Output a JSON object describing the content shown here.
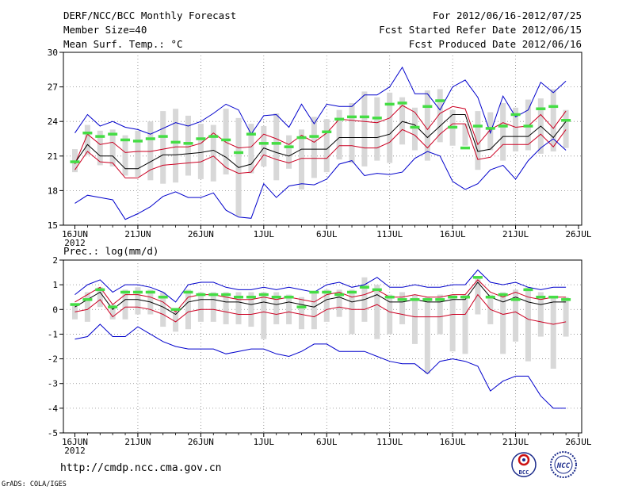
{
  "header": {
    "title": "DERF/NCC/BCC Monthly Forecast",
    "member_size": "Member Size=40",
    "variable": "Mean Surf. Temp.: °C",
    "period": "For 2012/06/16-2012/07/25",
    "start_date": "Fcst Started Refer Date 2012/06/15",
    "produced": "Fcst Produced Date 2012/06/16"
  },
  "footer": {
    "url": "http://cmdp.ncc.cma.gov.cn",
    "grads": "GrADS: COLA/IGES",
    "logo_bcc": "BCC",
    "logo_ncc": "NCC"
  },
  "colors": {
    "envelope": "#0000cc",
    "spread": "#cc0022",
    "mean": "#000000",
    "median": "#44dd44",
    "box": "#d8d8d8",
    "grid": "#888888"
  },
  "chart_data": [
    {
      "type": "line",
      "title": "Mean Surf. Temp.: °C",
      "x_tick_labels": [
        "16JUN",
        "21JUN",
        "26JUN",
        "1JUL",
        "6JUL",
        "11JUL",
        "16JUL",
        "21JUL",
        "26JUL"
      ],
      "x_tick_days": [
        0,
        5,
        10,
        15,
        20,
        25,
        30,
        35,
        40
      ],
      "x_year_label": "2012",
      "ylim": [
        15,
        30
      ],
      "y_ticks": [
        15,
        18,
        21,
        24,
        27,
        30
      ],
      "days": [
        0,
        1,
        2,
        3,
        4,
        5,
        6,
        7,
        8,
        9,
        10,
        11,
        12,
        13,
        14,
        15,
        16,
        17,
        18,
        19,
        20,
        21,
        22,
        23,
        24,
        25,
        26,
        27,
        28,
        29,
        30,
        31,
        32,
        33,
        34,
        35,
        36,
        37,
        38,
        39
      ],
      "series": [
        {
          "name": "ensemble max",
          "color_key": "envelope",
          "values": [
            23.0,
            24.6,
            23.6,
            24.0,
            23.5,
            23.3,
            22.9,
            23.4,
            23.9,
            23.6,
            24.0,
            24.7,
            25.5,
            25.0,
            22.9,
            24.5,
            24.6,
            23.5,
            25.5,
            23.8,
            25.5,
            25.3,
            25.3,
            26.3,
            26.3,
            27.0,
            28.7,
            26.4,
            26.4,
            25.0,
            27.0,
            27.6,
            26.1,
            23.0,
            26.2,
            24.4,
            25.0,
            27.4,
            26.5,
            27.5
          ]
        },
        {
          "name": "upper spread",
          "color_key": "spread",
          "values": [
            20.3,
            22.9,
            22.0,
            22.2,
            21.3,
            21.4,
            21.4,
            21.6,
            21.8,
            21.8,
            22.1,
            23.0,
            22.2,
            21.7,
            21.8,
            22.9,
            22.5,
            22.0,
            22.8,
            22.2,
            23.0,
            24.2,
            24.1,
            24.0,
            23.9,
            24.3,
            25.4,
            24.8,
            23.3,
            24.7,
            25.3,
            25.1,
            22.0,
            23.3,
            23.9,
            23.5,
            23.6,
            24.6,
            23.4,
            24.9
          ]
        },
        {
          "name": "ensemble mean",
          "color_key": "mean",
          "values": [
            20.4,
            22.0,
            21.0,
            21.0,
            19.9,
            19.9,
            20.5,
            21.1,
            21.1,
            21.2,
            21.3,
            21.5,
            20.9,
            20.0,
            20.3,
            21.7,
            21.3,
            21.0,
            21.6,
            21.6,
            21.6,
            22.6,
            22.6,
            22.6,
            22.6,
            22.9,
            24.0,
            23.7,
            22.6,
            23.6,
            24.6,
            24.6,
            21.4,
            21.6,
            22.7,
            22.7,
            22.7,
            23.6,
            22.6,
            24.0
          ]
        },
        {
          "name": "lower spread",
          "color_key": "spread",
          "values": [
            19.8,
            21.4,
            20.5,
            20.4,
            19.1,
            19.1,
            19.8,
            20.2,
            20.3,
            20.4,
            20.5,
            21.0,
            20.0,
            19.5,
            19.6,
            21.1,
            20.7,
            20.4,
            20.8,
            20.8,
            20.8,
            21.9,
            21.9,
            21.7,
            21.7,
            22.2,
            23.3,
            22.8,
            21.7,
            22.9,
            23.8,
            23.8,
            20.7,
            20.9,
            22.0,
            22.0,
            22.0,
            22.9,
            21.8,
            23.3
          ]
        },
        {
          "name": "ensemble min",
          "color_key": "envelope",
          "values": [
            16.9,
            17.6,
            17.4,
            17.2,
            15.5,
            16.0,
            16.6,
            17.5,
            17.9,
            17.4,
            17.4,
            17.8,
            16.3,
            15.7,
            15.6,
            18.6,
            17.4,
            18.4,
            18.6,
            18.5,
            19.0,
            20.3,
            20.6,
            19.3,
            19.5,
            19.4,
            19.6,
            20.8,
            21.4,
            21.0,
            18.8,
            18.1,
            18.6,
            19.8,
            20.2,
            19.0,
            20.6,
            21.7,
            22.5,
            21.5
          ]
        },
        {
          "name": "ensemble median",
          "color_key": "median",
          "values": [
            20.5,
            23.0,
            22.7,
            22.9,
            22.4,
            22.3,
            22.5,
            22.7,
            22.2,
            22.1,
            22.5,
            22.7,
            22.4,
            21.3,
            22.9,
            22.1,
            22.1,
            21.8,
            22.6,
            22.7,
            23.1,
            24.2,
            24.4,
            24.4,
            24.3,
            25.5,
            25.6,
            23.5,
            25.3,
            25.8,
            23.5,
            21.7,
            23.6,
            23.4,
            23.6,
            24.6,
            23.6,
            25.1,
            25.3,
            24.1
          ]
        }
      ],
      "boxes": {
        "low": [
          19.6,
          21.1,
          20.2,
          20.1,
          19.3,
          19.2,
          18.9,
          18.6,
          18.7,
          19.3,
          19.0,
          18.8,
          19.4,
          15.8,
          19.5,
          20.1,
          18.9,
          19.9,
          18.1,
          19.1,
          19.6,
          20.7,
          20.4,
          20.1,
          20.6,
          20.4,
          22.0,
          21.5,
          20.6,
          22.2,
          21.9,
          21.9,
          19.8,
          21.5,
          20.6,
          21.4,
          21.5,
          21.2,
          21.4,
          21.7
        ],
        "high": [
          21.6,
          23.7,
          23.2,
          23.3,
          22.8,
          23.2,
          24.0,
          24.9,
          25.1,
          24.5,
          23.8,
          23.7,
          25.1,
          24.3,
          23.8,
          23.6,
          24.7,
          22.8,
          23.3,
          24.4,
          24.2,
          25.0,
          25.6,
          26.6,
          26.1,
          26.5,
          26.1,
          25.2,
          26.7,
          26.8,
          25.0,
          23.8,
          24.9,
          24.8,
          25.6,
          25.2,
          25.9,
          26.0,
          26.8,
          25.0
        ]
      }
    },
    {
      "type": "line",
      "title": "Prec.: log(mm/d)",
      "x_tick_labels": [
        "16JUN",
        "21JUN",
        "26JUN",
        "1JUL",
        "6JUL",
        "11JUL",
        "16JUL",
        "21JUL",
        "26JUL"
      ],
      "x_tick_days": [
        0,
        5,
        10,
        15,
        20,
        25,
        30,
        35,
        40
      ],
      "x_year_label": "2012",
      "ylim": [
        -5,
        2
      ],
      "y_ticks": [
        -5,
        -4,
        -3,
        -2,
        -1,
        0,
        1,
        2
      ],
      "days": [
        0,
        1,
        2,
        3,
        4,
        5,
        6,
        7,
        8,
        9,
        10,
        11,
        12,
        13,
        14,
        15,
        16,
        17,
        18,
        19,
        20,
        21,
        22,
        23,
        24,
        25,
        26,
        27,
        28,
        29,
        30,
        31,
        32,
        33,
        34,
        35,
        36,
        37,
        38,
        39
      ],
      "series": [
        {
          "name": "ensemble max",
          "color_key": "envelope",
          "values": [
            0.6,
            1.0,
            1.2,
            0.7,
            1.0,
            1.0,
            0.9,
            0.7,
            0.3,
            1.0,
            1.1,
            1.1,
            0.9,
            0.8,
            0.8,
            0.9,
            0.8,
            0.9,
            0.8,
            0.7,
            1.0,
            1.1,
            0.9,
            1.0,
            1.3,
            0.9,
            0.9,
            1.0,
            0.9,
            0.9,
            1.0,
            1.0,
            1.6,
            1.1,
            1.0,
            1.1,
            0.9,
            0.8,
            0.9,
            0.9
          ]
        },
        {
          "name": "upper spread",
          "color_key": "spread",
          "values": [
            0.3,
            0.6,
            0.9,
            0.2,
            0.6,
            0.6,
            0.5,
            0.3,
            -0.1,
            0.5,
            0.6,
            0.6,
            0.5,
            0.4,
            0.4,
            0.5,
            0.4,
            0.5,
            0.4,
            0.3,
            0.6,
            0.7,
            0.5,
            0.6,
            0.8,
            0.5,
            0.5,
            0.6,
            0.5,
            0.5,
            0.6,
            0.6,
            1.2,
            0.7,
            0.5,
            0.7,
            0.5,
            0.4,
            0.5,
            0.5
          ]
        },
        {
          "name": "ensemble mean",
          "color_key": "mean",
          "values": [
            0.1,
            0.4,
            0.7,
            0.0,
            0.4,
            0.4,
            0.3,
            0.1,
            -0.2,
            0.3,
            0.4,
            0.4,
            0.3,
            0.3,
            0.2,
            0.3,
            0.2,
            0.3,
            0.2,
            0.1,
            0.4,
            0.5,
            0.3,
            0.4,
            0.6,
            0.3,
            0.3,
            0.4,
            0.3,
            0.3,
            0.4,
            0.4,
            1.1,
            0.5,
            0.3,
            0.5,
            0.3,
            0.2,
            0.3,
            0.3
          ]
        },
        {
          "name": "lower spread",
          "color_key": "spread",
          "values": [
            -0.1,
            0.0,
            0.4,
            -0.3,
            0.1,
            0.1,
            0.0,
            -0.2,
            -0.5,
            -0.1,
            0.0,
            0.0,
            -0.1,
            -0.2,
            -0.2,
            -0.1,
            -0.2,
            -0.1,
            -0.2,
            -0.3,
            0.0,
            0.1,
            0.0,
            0.0,
            0.2,
            -0.1,
            -0.2,
            -0.3,
            -0.3,
            -0.3,
            -0.2,
            -0.2,
            0.6,
            0.0,
            -0.2,
            -0.1,
            -0.4,
            -0.5,
            -0.6,
            -0.5
          ]
        },
        {
          "name": "ensemble min",
          "color_key": "envelope",
          "values": [
            -1.2,
            -1.1,
            -0.6,
            -1.1,
            -1.1,
            -0.7,
            -1.0,
            -1.3,
            -1.5,
            -1.6,
            -1.6,
            -1.6,
            -1.8,
            -1.7,
            -1.6,
            -1.6,
            -1.8,
            -1.9,
            -1.7,
            -1.4,
            -1.4,
            -1.7,
            -1.7,
            -1.7,
            -1.9,
            -2.1,
            -2.2,
            -2.2,
            -2.6,
            -2.1,
            -2.0,
            -2.1,
            -2.3,
            -3.3,
            -2.9,
            -2.7,
            -2.7,
            -3.5,
            -4.0,
            -4.0
          ]
        },
        {
          "name": "ensemble median",
          "color_key": "median",
          "values": [
            0.2,
            0.4,
            0.8,
            0.1,
            0.7,
            0.7,
            0.7,
            0.5,
            0.0,
            0.7,
            0.6,
            0.6,
            0.6,
            0.5,
            0.5,
            0.6,
            0.5,
            0.5,
            0.1,
            0.7,
            0.7,
            0.6,
            0.7,
            0.9,
            0.8,
            0.5,
            0.4,
            0.4,
            0.4,
            0.4,
            0.5,
            0.5,
            1.3,
            0.5,
            0.6,
            0.4,
            0.8,
            0.5,
            0.5,
            0.4
          ]
        }
      ],
      "boxes": {
        "low": [
          -0.4,
          -0.5,
          0.1,
          -0.4,
          -0.4,
          -0.2,
          -0.2,
          -0.7,
          -0.9,
          -0.8,
          -0.5,
          -0.5,
          -0.6,
          -0.6,
          -0.7,
          -1.2,
          -0.6,
          -0.6,
          -0.8,
          -0.8,
          -0.5,
          -0.3,
          -1.0,
          -0.5,
          -1.2,
          -1.0,
          -0.6,
          -1.4,
          -2.6,
          -1.0,
          -1.7,
          -1.8,
          -0.2,
          -0.6,
          -1.8,
          -1.3,
          -2.1,
          -1.1,
          -2.4,
          -1.1
        ],
        "high": [
          0.2,
          0.7,
          0.9,
          0.2,
          0.8,
          0.9,
          0.8,
          0.7,
          -0.1,
          0.8,
          0.7,
          0.7,
          0.7,
          0.7,
          0.7,
          0.7,
          0.7,
          0.6,
          0.5,
          0.7,
          0.8,
          0.8,
          0.8,
          1.3,
          1.0,
          0.6,
          0.7,
          0.6,
          0.5,
          0.6,
          0.6,
          0.6,
          1.3,
          0.6,
          0.7,
          0.8,
          0.9,
          0.7,
          0.5,
          0.5
        ]
      }
    }
  ]
}
